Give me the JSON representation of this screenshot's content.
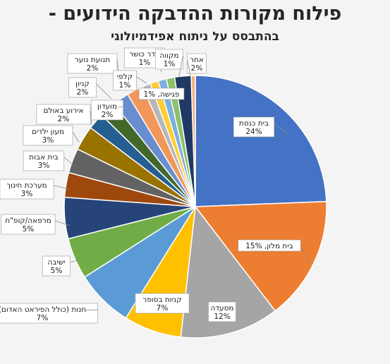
{
  "title": "פילוח מקורות ההדבקה הידועים -",
  "subtitle": "בהתבסס על ניתוח אפידמיולוגי",
  "chart_data": {
    "type": "pie",
    "title": "פילוח מקורות ההדבקה הידועים -",
    "subtitle": "בהתבסס על ניתוח אפידמיולוגי",
    "slices": [
      {
        "label": "בית כנסת",
        "value": 24,
        "display": "24%",
        "color": "#4472c4"
      },
      {
        "label": "בית מלון",
        "value": 15,
        "display": "15%",
        "color": "#ed7d31"
      },
      {
        "label": "מסעדה",
        "value": 12,
        "display": "12%",
        "color": "#a5a5a5"
      },
      {
        "label": "קניות בסופר",
        "value": 7,
        "display": "7%",
        "color": "#ffc000"
      },
      {
        "label": "חנות (כולל הפיראט האדום)",
        "value": 7,
        "display": "7%",
        "color": "#5b9bd5"
      },
      {
        "label": "ישיבה",
        "value": 5,
        "display": "5%",
        "color": "#70ad47"
      },
      {
        "label": "מרפאה/קופ\"ח",
        "value": 5,
        "display": "5%",
        "color": "#264478"
      },
      {
        "label": "מערכת חינוך",
        "value": 3,
        "display": "3%",
        "color": "#9e480e"
      },
      {
        "label": "בית אבות",
        "value": 3,
        "display": "3%",
        "color": "#636363"
      },
      {
        "label": "מעון ילדים",
        "value": 3,
        "display": "3%",
        "color": "#997300"
      },
      {
        "label": "אירוע באולם",
        "value": 2,
        "display": "2%",
        "color": "#255e91"
      },
      {
        "label": "מועדון",
        "value": 2,
        "display": "2%",
        "color": "#43682b"
      },
      {
        "label": "קניון",
        "value": 2,
        "display": "2%",
        "color": "#698ed0"
      },
      {
        "label": "תנועת נוער",
        "value": 2,
        "display": "2%",
        "color": "#f1975a"
      },
      {
        "label": "קלפי",
        "value": 1,
        "display": "1%",
        "color": "#b7b7b7"
      },
      {
        "label": "חדר כושר",
        "value": 1,
        "display": "1%",
        "color": "#ffcd33"
      },
      {
        "label": "פגישה",
        "value": 1,
        "display": "1%",
        "color": "#7cafdd"
      },
      {
        "label": "מקווה",
        "value": 1,
        "display": "1%",
        "color": "#8cc168"
      },
      {
        "label": "אחר",
        "value": 2,
        "display": "2%",
        "color": "#203864"
      },
      {
        "label": "",
        "value": 0.5,
        "display": "",
        "color": "#f4b183"
      }
    ]
  }
}
